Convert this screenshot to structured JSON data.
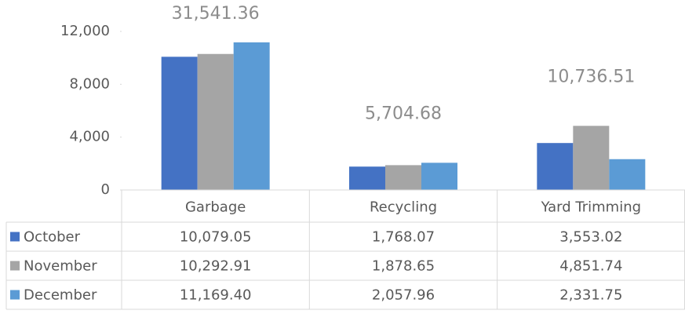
{
  "chart_data": {
    "type": "bar",
    "categories": [
      "Garbage",
      "Recycling",
      "Yard Trimming"
    ],
    "series": [
      {
        "name": "October",
        "color": "#4472c4",
        "values": [
          10079.05,
          1768.07,
          3553.02
        ],
        "value_labels": [
          "10,079.05",
          "1,768.07",
          "3,553.02"
        ]
      },
      {
        "name": "November",
        "color": "#a5a5a5",
        "values": [
          10292.91,
          1878.65,
          4851.74
        ],
        "value_labels": [
          "10,292.91",
          "1,878.65",
          "4,851.74"
        ]
      },
      {
        "name": "December",
        "color": "#5b9bd5",
        "values": [
          11169.4,
          2057.96,
          2331.75
        ],
        "value_labels": [
          "11,169.40",
          "2,057.96",
          "2,331.75"
        ]
      }
    ],
    "annotations": [
      "31,541.36",
      "5,704.68",
      "10,736.51"
    ],
    "ylim": [
      0,
      12000
    ],
    "yticks": [
      0,
      {
        "value": 4000,
        "label": "4,000"
      },
      {
        "value": 8000,
        "label": "8,000"
      },
      {
        "value": 12000,
        "label": "12,000"
      }
    ],
    "grid": false,
    "data_table": true
  }
}
